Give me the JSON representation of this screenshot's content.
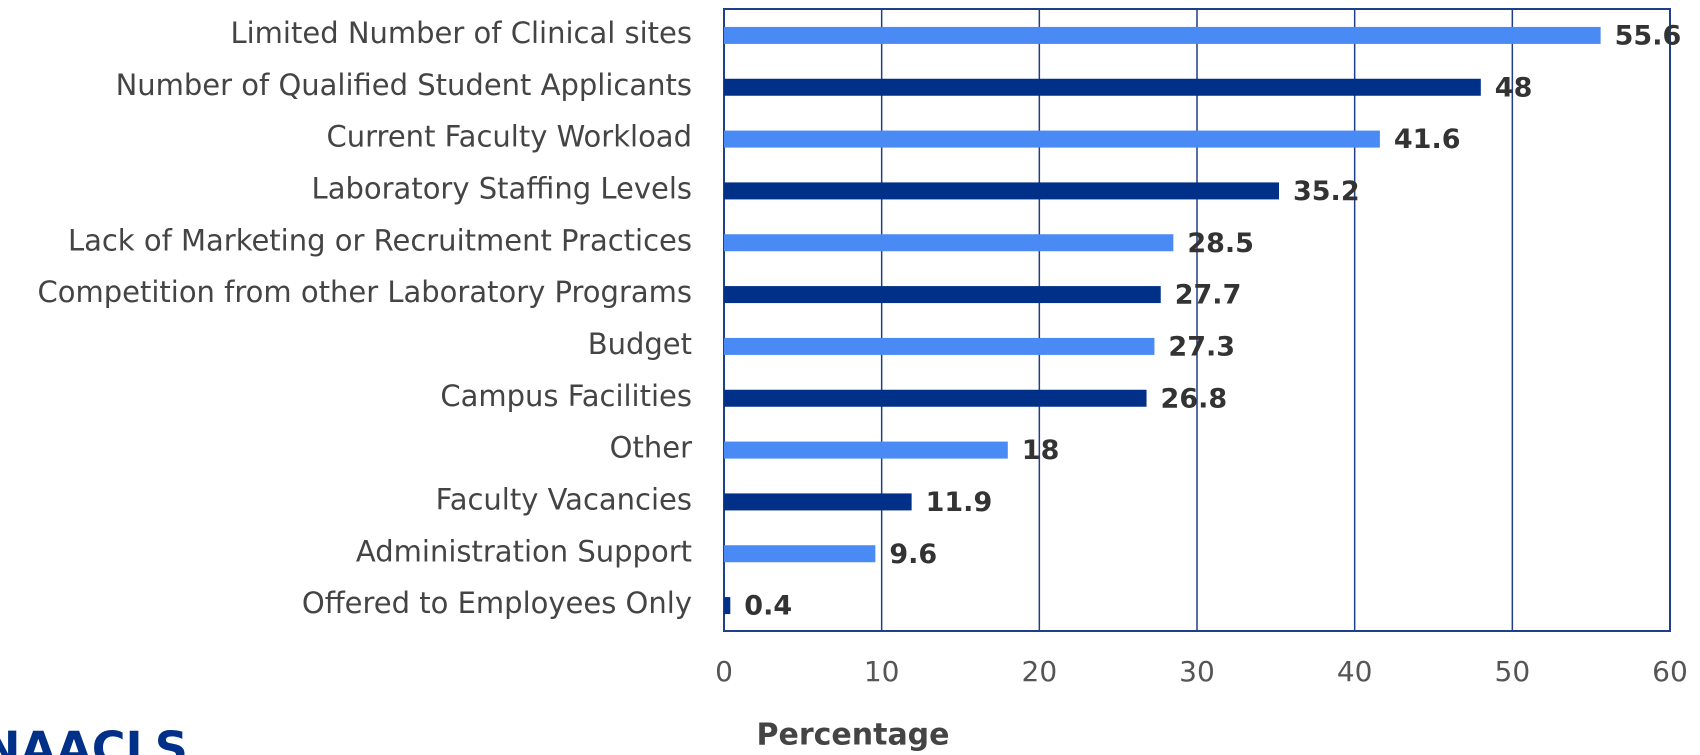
{
  "chart_data": {
    "type": "barh",
    "categories": [
      "Limited Number of Clinical sites",
      "Number of Qualified Student Applicants",
      "Current Faculty Workload",
      "Laboratory Staffing Levels",
      "Lack of Marketing or Recruitment Practices",
      "Competition from other Laboratory Programs",
      "Budget",
      "Campus Facilities",
      "Other",
      "Faculty Vacancies",
      "Administration Support",
      "Offered to Employees Only"
    ],
    "values": [
      55.6,
      48,
      41.6,
      35.2,
      28.5,
      27.7,
      27.3,
      26.8,
      18,
      11.9,
      9.6,
      0.4
    ],
    "colors": [
      "#4a8af4",
      "#003087",
      "#4a8af4",
      "#003087",
      "#4a8af4",
      "#003087",
      "#4a8af4",
      "#003087",
      "#4a8af4",
      "#003087",
      "#4a8af4",
      "#003087"
    ],
    "xlabel": "Percentage",
    "xlim": [
      0,
      60
    ],
    "xticks": [
      0,
      10,
      20,
      30,
      40,
      50,
      60
    ],
    "grid": true
  },
  "logo": "NAACLS"
}
